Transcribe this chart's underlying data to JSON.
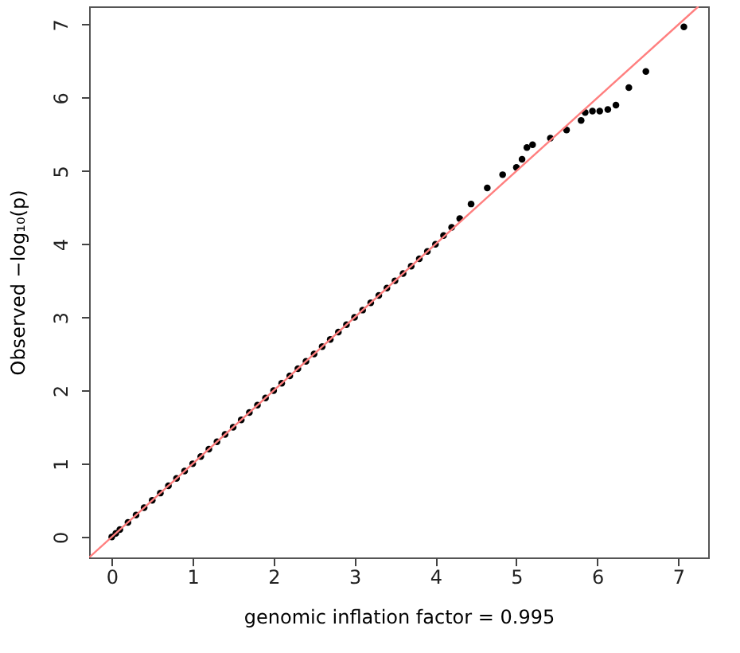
{
  "chart_data": {
    "type": "scatter",
    "xlabel": "genomic inflation factor = 0.995",
    "ylabel": "Observed  −log₁₀(p)",
    "xlim": [
      -0.28,
      7.37
    ],
    "ylim": [
      -0.28,
      7.25
    ],
    "xticks": [
      0,
      1,
      2,
      3,
      4,
      5,
      6,
      7
    ],
    "yticks": [
      0,
      1,
      2,
      3,
      4,
      5,
      6,
      7
    ],
    "grid": false,
    "marker": "circle",
    "series": [
      {
        "color": "#000000",
        "x": [
          0,
          0.05,
          0.1,
          0.2,
          0.3,
          0.4,
          0.5,
          0.6,
          0.7,
          0.8,
          0.9,
          1.0,
          1.1,
          1.2,
          1.3,
          1.4,
          1.5,
          1.6,
          1.7,
          1.8,
          1.9,
          2.0,
          2.1,
          2.2,
          2.3,
          2.4,
          2.5,
          2.6,
          2.7,
          2.8,
          2.9,
          3.0,
          3.1,
          3.2,
          3.3,
          3.4,
          3.5,
          3.6,
          3.7,
          3.8,
          3.9,
          4.0,
          4.1,
          4.2,
          4.3,
          4.44,
          4.64,
          4.83,
          5.0,
          5.07,
          5.13,
          5.2,
          5.42,
          5.62,
          5.8,
          5.85,
          5.94,
          6.03,
          6.13,
          6.23,
          6.39,
          6.6,
          7.07
        ],
        "values": [
          0,
          0.05,
          0.1,
          0.2,
          0.3,
          0.4,
          0.5,
          0.6,
          0.7,
          0.8,
          0.9,
          1.0,
          1.1,
          1.2,
          1.3,
          1.4,
          1.5,
          1.6,
          1.7,
          1.8,
          1.9,
          2.0,
          2.1,
          2.2,
          2.3,
          2.4,
          2.5,
          2.6,
          2.7,
          2.8,
          2.9,
          3.0,
          3.1,
          3.2,
          3.3,
          3.4,
          3.5,
          3.6,
          3.7,
          3.8,
          3.9,
          4.0,
          4.12,
          4.23,
          4.35,
          4.55,
          4.77,
          4.95,
          5.05,
          5.16,
          5.32,
          5.36,
          5.45,
          5.56,
          5.69,
          5.8,
          5.82,
          5.82,
          5.84,
          5.9,
          6.14,
          6.36,
          6.97
        ]
      },
      {
        "type": "line",
        "color": "#ff7f7f",
        "marker": "none",
        "x": [
          -0.28,
          7.25
        ],
        "values": [
          -0.28,
          7.25
        ]
      }
    ]
  }
}
